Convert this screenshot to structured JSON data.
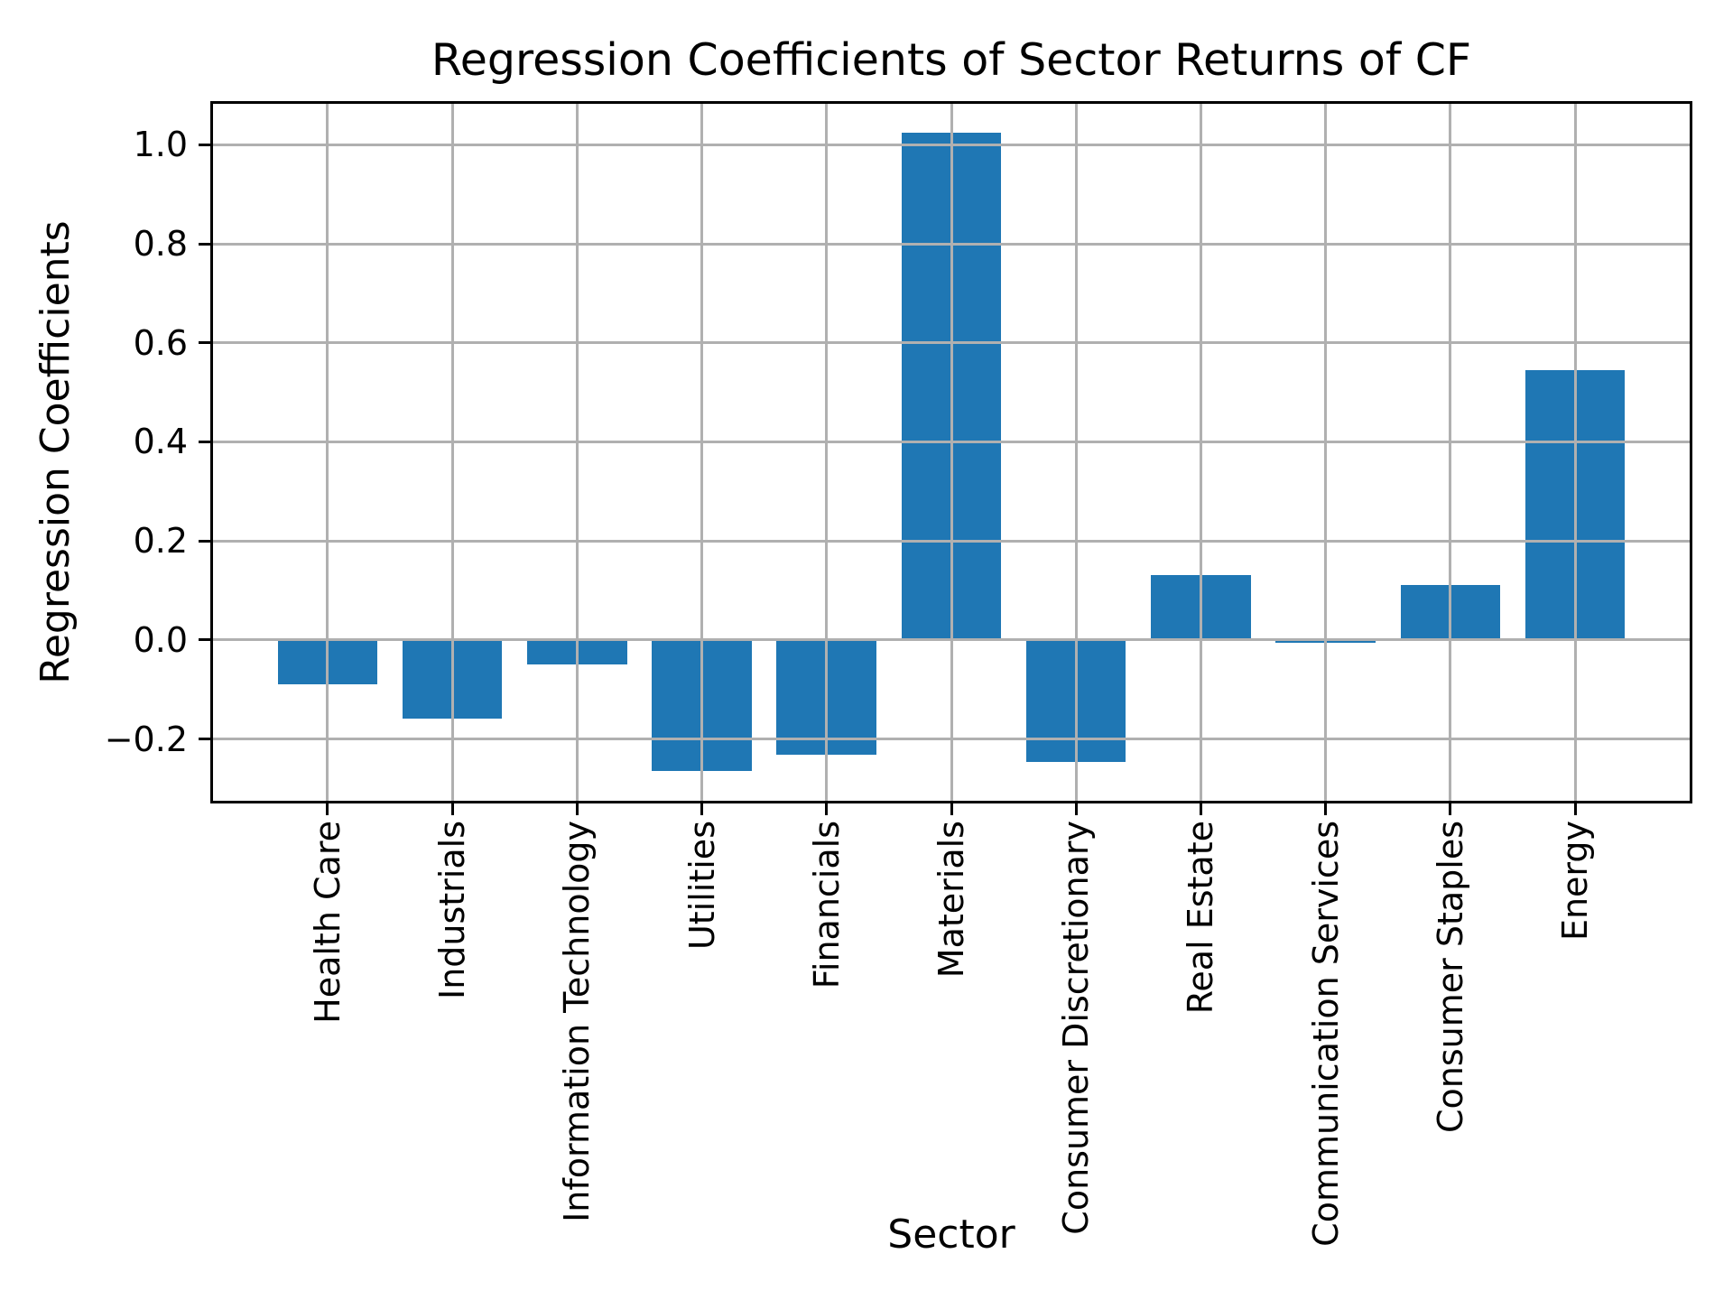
{
  "title": "Regression Coefficients of Sector Returns of CF",
  "chart_data": {
    "type": "bar",
    "title": "Regression Coefficients of Sector Returns of CF",
    "xlabel": "Sector",
    "ylabel": "Regression Coefficients",
    "categories": [
      "Health Care",
      "Industrials",
      "Information Technology",
      "Utilities",
      "Financials",
      "Materials",
      "Consumer Discretionary",
      "Real Estate",
      "Communication Services",
      "Consumer Staples",
      "Energy"
    ],
    "values": [
      -0.089,
      -0.158,
      -0.049,
      -0.265,
      -0.231,
      1.024,
      -0.246,
      0.131,
      -0.005,
      0.111,
      0.544
    ],
    "ytick_values": [
      1.0,
      0.8,
      0.6,
      0.4,
      0.2,
      0.0,
      -0.2
    ],
    "ytick_labels": [
      "1.0",
      "0.8",
      "0.6",
      "0.4",
      "0.2",
      "0.0",
      "−0.2"
    ],
    "ylim": [
      -0.33,
      1.088
    ],
    "grid": "on",
    "legend": "none",
    "bar_color": "#1f77b4",
    "grid_color": "#b0b0b0",
    "axis_color": "#000000",
    "background_color": "#ffffff"
  }
}
